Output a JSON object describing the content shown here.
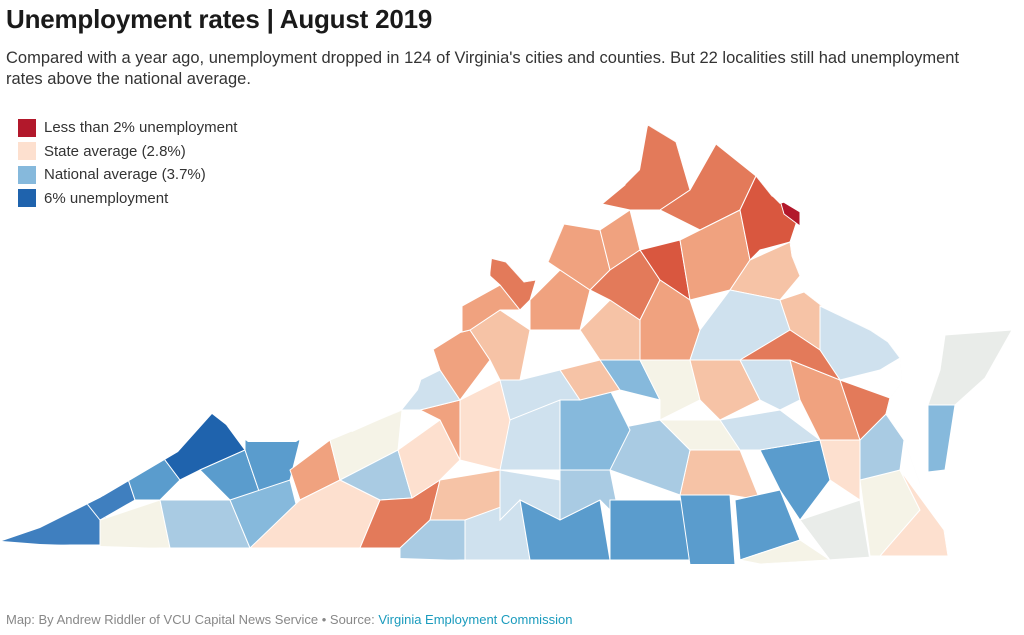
{
  "header": {
    "title": "Unemployment rates | August 2019",
    "subtitle": "Compared with a year ago, unemployment dropped in 124 of Virginia's cities and counties. But 22 localities still had unemployment rates above the national average."
  },
  "legend": {
    "items": [
      {
        "label": "Less than 2% unemployment",
        "color": "#b2182b"
      },
      {
        "label": "State average (2.8%)",
        "color": "#fde0cf"
      },
      {
        "label": "National average (3.7%)",
        "color": "#86b9dc"
      },
      {
        "label": "6% unemployment",
        "color": "#1f63ad"
      }
    ]
  },
  "colors": {
    "dark_red": "#b2182b",
    "red": "#d9573f",
    "orange_red": "#e37a5a",
    "salmon": "#f0a27f",
    "light_salmon": "#f6c3a6",
    "peach": "#fde0cf",
    "cream": "#f5f3e7",
    "light_gray": "#e9ece9",
    "pale_blue": "#cfe1ee",
    "light_blue": "#a9cbe3",
    "mid_blue": "#86b9dc",
    "blue": "#5a9ccd",
    "deep_blue": "#3f7fbf",
    "dark_blue": "#1f63ad",
    "border": "#ffffff"
  },
  "footer": {
    "credit": "Map: By Andrew Riddler of VCU Capital News Service • Source: ",
    "source_link": "Virginia Employment Commission"
  }
}
